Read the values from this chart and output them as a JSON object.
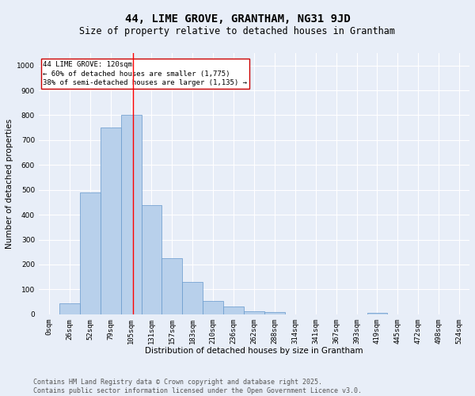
{
  "title": "44, LIME GROVE, GRANTHAM, NG31 9JD",
  "subtitle": "Size of property relative to detached houses in Grantham",
  "xlabel": "Distribution of detached houses by size in Grantham",
  "ylabel": "Number of detached properties",
  "bin_labels": [
    "0sqm",
    "26sqm",
    "52sqm",
    "79sqm",
    "105sqm",
    "131sqm",
    "157sqm",
    "183sqm",
    "210sqm",
    "236sqm",
    "262sqm",
    "288sqm",
    "314sqm",
    "341sqm",
    "367sqm",
    "393sqm",
    "419sqm",
    "445sqm",
    "472sqm",
    "498sqm",
    "524sqm"
  ],
  "bar_heights": [
    0,
    45,
    490,
    750,
    800,
    440,
    225,
    130,
    55,
    30,
    12,
    8,
    0,
    0,
    0,
    0,
    5,
    0,
    0,
    0,
    0
  ],
  "bar_color": "#b8d0eb",
  "bar_edgecolor": "#6699cc",
  "ylim": [
    0,
    1050
  ],
  "yticks": [
    0,
    100,
    200,
    300,
    400,
    500,
    600,
    700,
    800,
    900,
    1000
  ],
  "annotation_line1": "44 LIME GROVE: 120sqm",
  "annotation_line2": "← 60% of detached houses are smaller (1,775)",
  "annotation_line3": "38% of semi-detached houses are larger (1,135) →",
  "annotation_box_color": "#ffffff",
  "annotation_box_edgecolor": "#cc0000",
  "footer_line1": "Contains HM Land Registry data © Crown copyright and database right 2025.",
  "footer_line2": "Contains public sector information licensed under the Open Government Licence v3.0.",
  "background_color": "#e8eef8",
  "grid_color": "#ffffff",
  "title_fontsize": 10,
  "subtitle_fontsize": 8.5,
  "axis_label_fontsize": 7.5,
  "tick_fontsize": 6.5,
  "annotation_fontsize": 6.5,
  "footer_fontsize": 6.0,
  "red_line_x": 4.577
}
